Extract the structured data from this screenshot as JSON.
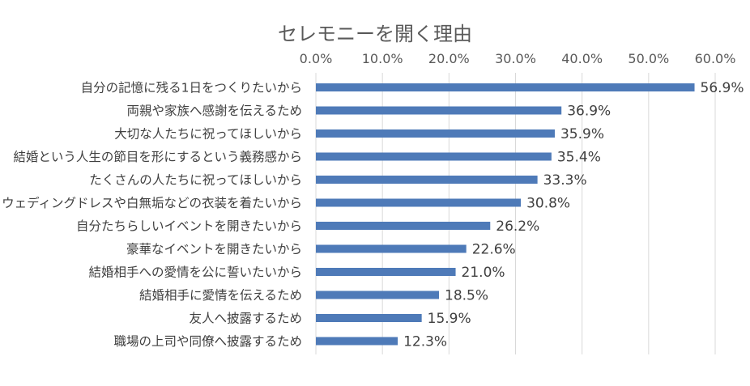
{
  "chart_data": {
    "type": "bar",
    "orientation": "horizontal",
    "title": "セレモニーを開く理由",
    "xlabel": "",
    "ylabel": "",
    "xlim": [
      0,
      60
    ],
    "x_ticks": [
      "0.0%",
      "10.0%",
      "20.0%",
      "30.0%",
      "40.0%",
      "50.0%",
      "60.0%"
    ],
    "x_tick_values": [
      0,
      10,
      20,
      30,
      40,
      50,
      60
    ],
    "axis_position": "top",
    "grid": true,
    "bar_color": "#4e7ab8",
    "categories": [
      "自分の記憶に残る1日をつくりたいから",
      "両親や家族へ感謝を伝えるため",
      "大切な人たちに祝ってほしいから",
      "結婚という人生の節目を形にするという義務感から",
      "たくさんの人たちに祝ってほしいから",
      "ウェディングドレスや白無垢などの衣装を着たいから",
      "自分たちらしいイベントを開きたいから",
      "豪華なイベントを開きたいから",
      "結婚相手への愛情を公に誓いたいから",
      "結婚相手に愛情を伝えるため",
      "友人へ披露するため",
      "職場の上司や同僚へ披露するため"
    ],
    "values": [
      56.9,
      36.9,
      35.9,
      35.4,
      33.3,
      30.8,
      26.2,
      22.6,
      21.0,
      18.5,
      15.9,
      12.3
    ],
    "value_labels": [
      "56.9%",
      "36.9%",
      "35.9%",
      "35.4%",
      "33.3%",
      "30.8%",
      "26.2%",
      "22.6%",
      "21.0%",
      "18.5%",
      "15.9%",
      "12.3%"
    ]
  }
}
